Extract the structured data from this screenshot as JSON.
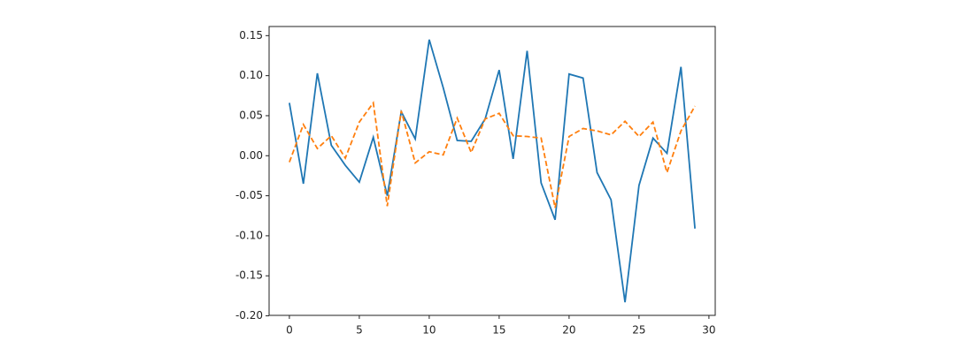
{
  "chart_data": {
    "type": "line",
    "x": [
      0,
      1,
      2,
      3,
      4,
      5,
      6,
      7,
      8,
      9,
      10,
      11,
      12,
      13,
      14,
      15,
      16,
      17,
      18,
      19,
      20,
      21,
      22,
      23,
      24,
      25,
      26,
      27,
      28,
      29
    ],
    "series": [
      {
        "color": "#1f77b4",
        "linestyle": "solid",
        "values": [
          0.066,
          -0.035,
          0.103,
          0.013,
          -0.012,
          -0.033,
          0.023,
          -0.05,
          0.055,
          0.021,
          0.145,
          0.085,
          0.019,
          0.018,
          0.046,
          0.107,
          -0.004,
          0.131,
          -0.034,
          -0.08,
          0.102,
          0.097,
          -0.021,
          -0.055,
          -0.183,
          -0.037,
          0.022,
          0.003,
          0.111,
          -0.091
        ]
      },
      {
        "color": "#ff7f0e",
        "linestyle": "dashed",
        "values": [
          -0.008,
          0.039,
          0.009,
          0.025,
          -0.003,
          0.042,
          0.066,
          -0.063,
          0.056,
          -0.009,
          0.005,
          0.001,
          0.047,
          0.004,
          0.046,
          0.053,
          0.025,
          0.024,
          0.022,
          -0.065,
          0.024,
          0.034,
          0.031,
          0.026,
          0.043,
          0.024,
          0.042,
          -0.021,
          0.031,
          0.062
        ]
      }
    ],
    "xlim": [
      -1.45,
      30.45
    ],
    "ylim": [
      -0.1994,
      0.1614
    ],
    "xticks": [
      0,
      5,
      10,
      15,
      20,
      25,
      30
    ],
    "yticks": [
      {
        "value": 0.15,
        "label": "0.15"
      },
      {
        "value": 0.1,
        "label": "0.10"
      },
      {
        "value": 0.05,
        "label": "0.05"
      },
      {
        "value": 0.0,
        "label": "0.00"
      },
      {
        "value": -0.05,
        "label": "-0.05"
      },
      {
        "value": -0.1,
        "label": "-0.10"
      },
      {
        "value": -0.15,
        "label": "-0.15"
      },
      {
        "value": -0.2,
        "label": "-0.20"
      }
    ]
  }
}
